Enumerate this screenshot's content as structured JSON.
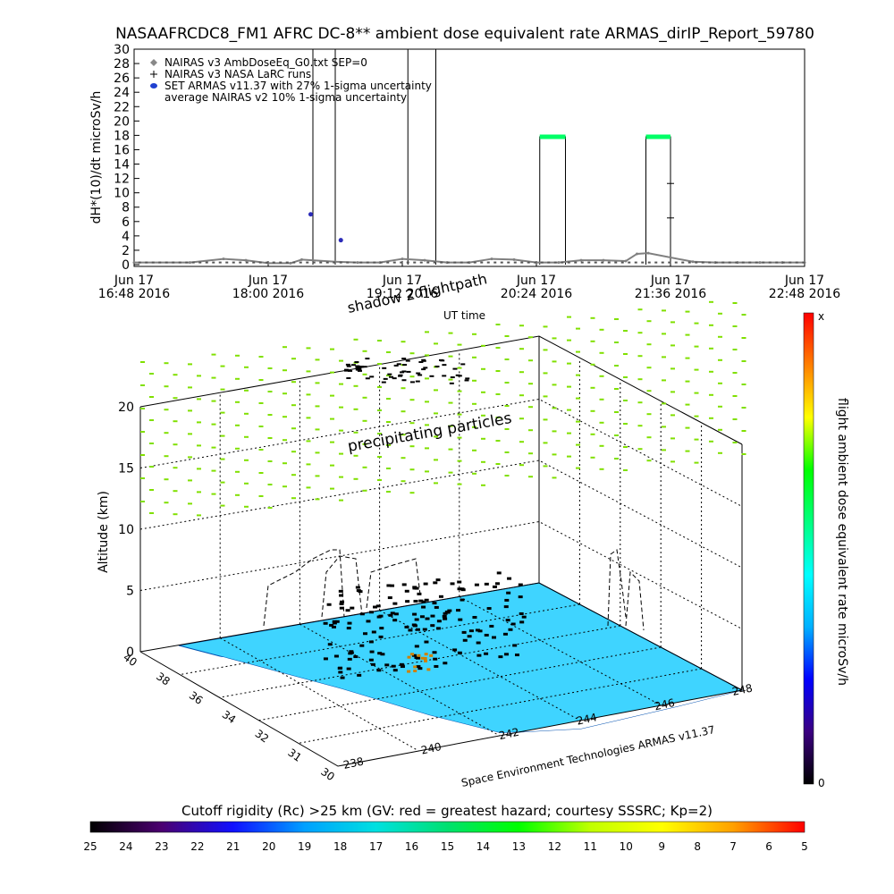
{
  "title": "NASAAFRCDC8_FM1 AFRC DC-8** ambient dose equivalent rate ARMAS_dirIP_Report_59780",
  "chart_data": [
    {
      "type": "line",
      "ylabel": "dH*(10)/dt microSv/h",
      "xlabel": "UT time",
      "ylim": [
        0,
        30
      ],
      "yticks": [
        "0",
        "2",
        "4",
        "6",
        "8",
        "10",
        "12",
        "14",
        "16",
        "18",
        "20",
        "22",
        "24",
        "26",
        "28",
        "30"
      ],
      "xticks": [
        {
          "line1": "Jun 17",
          "line2": "16:48 2016"
        },
        {
          "line1": "Jun 17",
          "line2": "18:00 2016"
        },
        {
          "line1": "Jun 17",
          "line2": "19:12 2016"
        },
        {
          "line1": "Jun 17",
          "line2": "20:24 2016"
        },
        {
          "line1": "Jun 17",
          "line2": "21:36 2016"
        },
        {
          "line1": "Jun 17",
          "line2": "22:48 2016"
        }
      ],
      "legend": [
        {
          "symbol": "diamond",
          "label": "NAIRAS v3 AmbDoseEq_G0.txt SEP=0"
        },
        {
          "symbol": "plus",
          "label": "NAIRAS v3 NASA LaRC runs"
        },
        {
          "symbol": "dot",
          "label": "SET ARMAS v11.37 with 27% 1-sigma uncertainty"
        },
        {
          "symbol": "none",
          "label": "average NAIRAS v2 10% 1-sigma uncertainty"
        }
      ],
      "legend_position": "top-left",
      "series": [
        {
          "name": "NAIRAS v3 AmbDoseEq_G0.txt SEP=0",
          "color": "#808080",
          "x": [
            0.0,
            0.5,
            0.8,
            1.0,
            1.2,
            1.4,
            1.5,
            1.8,
            2.0,
            2.2,
            2.4,
            2.6,
            2.8,
            3.0,
            3.2,
            3.4,
            3.6,
            3.8,
            4.0,
            4.2,
            4.4,
            4.5,
            4.6,
            5.0,
            5.2,
            5.4,
            5.6,
            5.8,
            6.0
          ],
          "y": [
            0.3,
            0.3,
            0.8,
            0.6,
            0.2,
            0.2,
            0.7,
            0.4,
            0.3,
            0.3,
            0.8,
            0.6,
            0.3,
            0.3,
            0.8,
            0.7,
            0.3,
            0.3,
            0.6,
            0.6,
            0.5,
            1.5,
            1.6,
            0.4,
            0.3,
            0.3,
            0.3,
            0.3,
            0.3
          ]
        },
        {
          "name": "SET ARMAS v11.37 with 27% 1-sigma uncertainty",
          "color": "#00ff66",
          "segments": [
            [
              3.63,
              3.86,
              17.8
            ],
            [
              4.58,
              4.8,
              17.8
            ]
          ]
        },
        {
          "name": "NAIRAS v3 NASA LaRC runs",
          "color": "#000000",
          "points": [
            [
              4.8,
              11.3
            ],
            [
              4.8,
              6.5
            ]
          ]
        },
        {
          "name": "SET ARMAS v11.37 points",
          "color": "#2b2bb8",
          "points": [
            [
              1.58,
              7.0
            ],
            [
              1.85,
              3.4
            ]
          ]
        }
      ],
      "spikes": [
        1.6,
        1.8,
        2.45,
        2.7,
        3.63,
        3.86,
        4.58,
        4.8
      ]
    },
    {
      "type": "scatter",
      "zlabel": "Altitude (km)",
      "zticks": [
        "0",
        "5",
        "10",
        "15",
        "20"
      ],
      "lat_ticks": [
        "30",
        "31",
        "32",
        "34",
        "36",
        "38",
        "40"
      ],
      "lon_ticks": [
        "238",
        "240",
        "242",
        "244",
        "246",
        "248"
      ],
      "annotations": [
        "shadow 2 flightpath",
        "UT time",
        "precipitating particles"
      ],
      "credit": "Space Environment Technologies ARMAS v11.37",
      "colorbar_label": "flight ambient dose equivalent rate microSv/h",
      "colorbar_ticks": [
        "0",
        "x"
      ],
      "colorbar_colors": [
        "#000000",
        "#3b0080",
        "#0000ff",
        "#00b0ff",
        "#00ffff",
        "#00ff80",
        "#00ff00",
        "#ffff00",
        "#ff8000",
        "#ff0000"
      ],
      "land_color": "#3fd4ff",
      "particle_color": "#80e000"
    },
    {
      "type": "heatmap",
      "label": "Cutoff rigidity (Rc) >25 km (GV: red = greatest hazard; courtesy SSSRC; Kp=2)",
      "ticks": [
        "25",
        "24",
        "23",
        "22",
        "21",
        "20",
        "19",
        "18",
        "17",
        "16",
        "15",
        "14",
        "13",
        "12",
        "11",
        "10",
        "9",
        "8",
        "7",
        "6",
        "5"
      ],
      "colors": [
        "#000000",
        "#4b0070",
        "#1010ff",
        "#00a0ff",
        "#00e0e0",
        "#00e070",
        "#00ff00",
        "#c0ff00",
        "#ffff00",
        "#ffa000",
        "#ff0000"
      ]
    }
  ]
}
